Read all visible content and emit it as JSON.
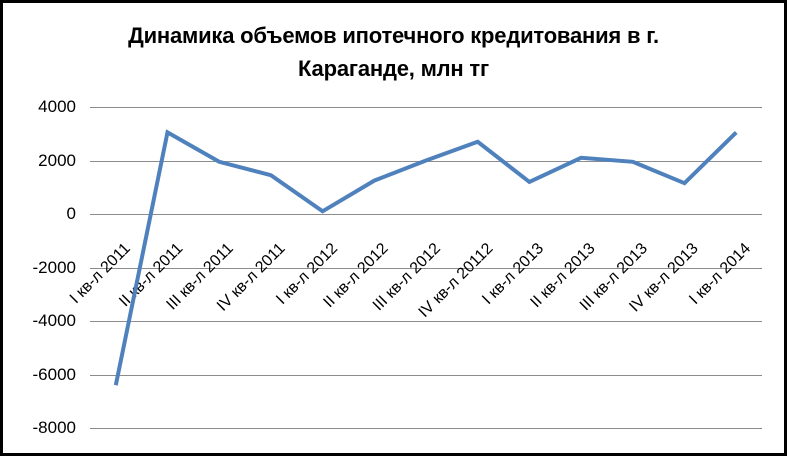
{
  "window": {
    "background": "#ffffff",
    "border_color": "#000000"
  },
  "title_lines": [
    "Динамика объемов ипотечного кредитования в г.",
    "Караганде, млн тг"
  ],
  "chart_data": {
    "type": "line",
    "title": "Динамика объемов ипотечного кредитования в г. Караганде, млн тг",
    "categories": [
      "I кв-л 2011",
      "II кв-л 2011",
      "III кв-л 2011",
      "IV кв-л 2011",
      "I кв-л 2012",
      "II кв-л 2012",
      "III кв-л 2012",
      "IV кв-л 20112",
      "I кв-л 2013",
      "II кв-л 2013",
      "III кв-л 2013",
      "IV кв-л 2013",
      "I кв-л 2014"
    ],
    "values": [
      -6400,
      3050,
      1950,
      1450,
      100,
      1250,
      2000,
      2700,
      1200,
      2100,
      1950,
      1150,
      3050
    ],
    "xlabel": "",
    "ylabel": "",
    "ylim": [
      -8000,
      4000
    ],
    "yticks": [
      4000,
      2000,
      0,
      -2000,
      -4000,
      -6000,
      -8000
    ],
    "x_tick_rotation_deg": 45,
    "grid": true,
    "legend": "none",
    "colors": {
      "line": "#4F81BD",
      "gridline": "#8C8C8C",
      "text": "#000000"
    }
  }
}
